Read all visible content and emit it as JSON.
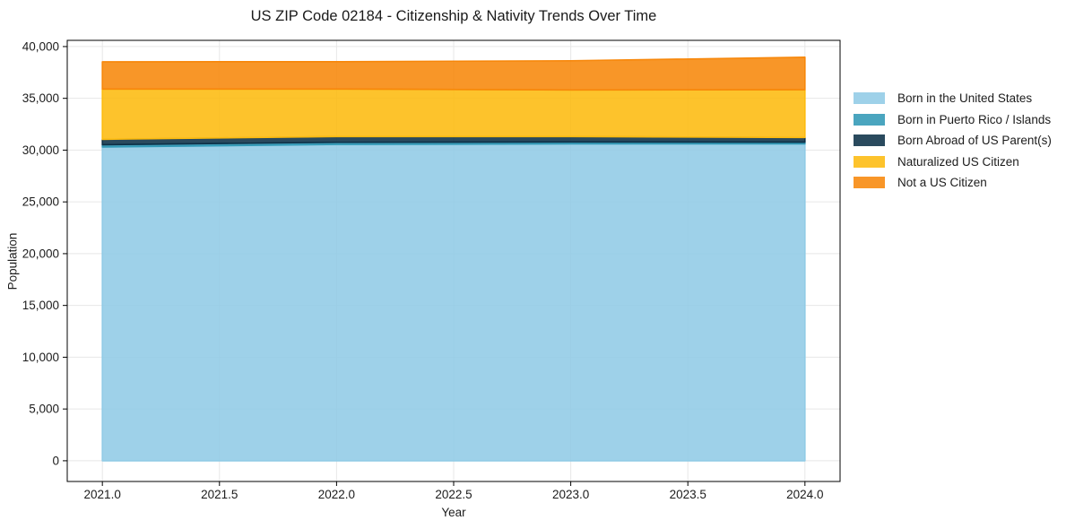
{
  "title": "US ZIP Code 02184 - Citizenship & Nativity Trends Over Time",
  "chart_data": {
    "type": "area",
    "stacked": true,
    "title": "US ZIP Code 02184 - Citizenship & Nativity Trends Over Time",
    "xlabel": "Year",
    "ylabel": "Population",
    "x": [
      2021,
      2022,
      2023,
      2024
    ],
    "series": [
      {
        "name": "Born in the United States",
        "color": "#91cbe6",
        "values": [
          30300,
          30550,
          30600,
          30600
        ]
      },
      {
        "name": "Born in Puerto Rico / Islands",
        "color": "#3199b6",
        "values": [
          220,
          200,
          190,
          170
        ]
      },
      {
        "name": "Born Abroad of US Parent(s)",
        "color": "#0d3148",
        "values": [
          520,
          560,
          520,
          450
        ]
      },
      {
        "name": "Naturalized US Citizen",
        "color": "#fdbb0f",
        "values": [
          4860,
          4590,
          4500,
          4610
        ]
      },
      {
        "name": "Not a US Citizen",
        "color": "#f7870a",
        "values": [
          2630,
          2640,
          2820,
          3140
        ]
      }
    ],
    "xlim": [
      2020.85,
      2024.15
    ],
    "ylim": [
      -2000,
      40600
    ],
    "xtick_values": [
      2021.0,
      2021.5,
      2022.0,
      2022.5,
      2023.0,
      2023.5,
      2024.0
    ],
    "xtick_labels": [
      "2021.0",
      "2021.5",
      "2022.0",
      "2022.5",
      "2023.0",
      "2023.5",
      "2024.0"
    ],
    "ytick_values": [
      0,
      5000,
      10000,
      15000,
      20000,
      25000,
      30000,
      35000,
      40000
    ],
    "ytick_labels": [
      "0",
      "5,000",
      "10,000",
      "15,000",
      "20,000",
      "25,000",
      "30,000",
      "35,000",
      "40,000"
    ],
    "grid": true,
    "legend_position": "right",
    "fill_alpha": 0.88,
    "grid_color": "#e7e7e7",
    "axis_color": "#000000",
    "text_color": "#1c1c1c",
    "background": "#ffffff"
  }
}
